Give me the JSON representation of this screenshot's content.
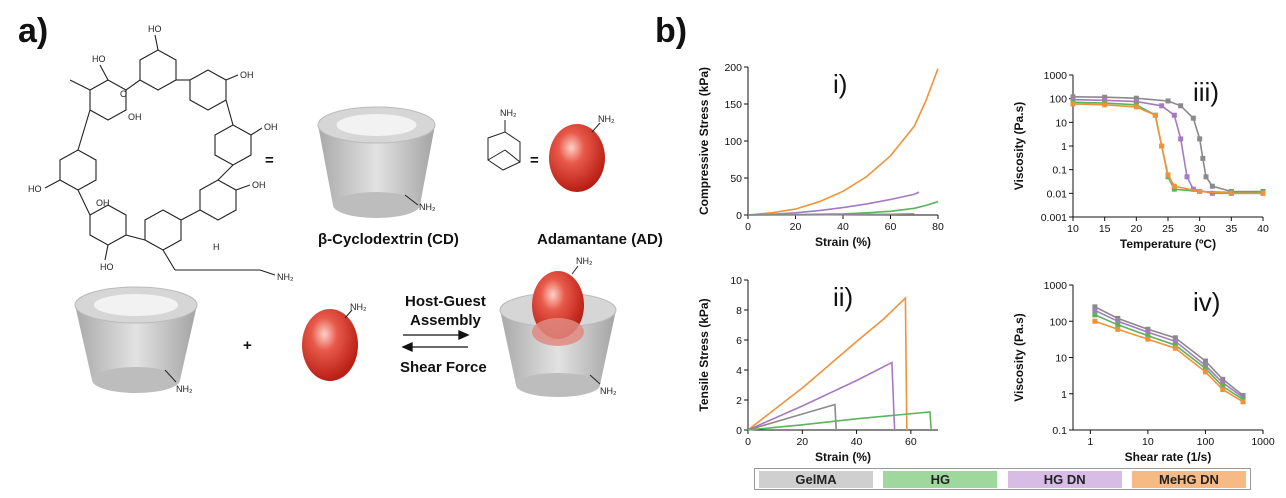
{
  "panels": {
    "a_label": "a)",
    "b_label": "b)"
  },
  "scheme": {
    "equals_1": "=",
    "equals_2": "=",
    "plus": "+",
    "cd_label": "β-Cyclodextrin (CD)",
    "ad_label": "Adamantane (AD)",
    "nh2": "NH₂",
    "ho": "HO",
    "oh": "OH",
    "o": "O",
    "h": "H",
    "arrow_top_1": "Host-Guest",
    "arrow_top_2": "Assembly",
    "arrow_bottom": "Shear Force"
  },
  "colors": {
    "GelMA": "#8a8a8a",
    "HG": "#5bb35b",
    "HG DN": "#a779c2",
    "MeHG DN": "#f0923a"
  },
  "legend": [
    {
      "name": "GelMA",
      "bg": "#cfcfcf"
    },
    {
      "name": "HG",
      "bg": "#9fd89d"
    },
    {
      "name": "HG DN",
      "bg": "#d7bde6"
    },
    {
      "name": "MeHG DN",
      "bg": "#f7ba84"
    }
  ],
  "chart_data": [
    {
      "id": "i",
      "numeral": "i)",
      "type": "line",
      "xlabel": "Strain (%)",
      "ylabel": "Compressive Stress (kPa)",
      "xlim": [
        0,
        80
      ],
      "ylim": [
        0,
        200
      ],
      "xticks": [
        0,
        20,
        40,
        60,
        80
      ],
      "yticks": [
        0,
        50,
        100,
        150,
        200
      ],
      "series": [
        {
          "name": "MeHG DN",
          "x": [
            0,
            10,
            20,
            30,
            40,
            50,
            60,
            70,
            75,
            80
          ],
          "y": [
            0,
            3,
            8,
            18,
            32,
            52,
            80,
            120,
            155,
            198
          ]
        },
        {
          "name": "HG DN",
          "x": [
            0,
            10,
            20,
            30,
            40,
            50,
            60,
            70,
            72
          ],
          "y": [
            0,
            1,
            3,
            6,
            10,
            15,
            21,
            28,
            31
          ]
        },
        {
          "name": "HG",
          "x": [
            0,
            20,
            40,
            50,
            60,
            70,
            75,
            80
          ],
          "y": [
            0,
            0.5,
            1.5,
            3,
            5,
            9,
            13,
            18
          ]
        },
        {
          "name": "GelMA",
          "x": [
            0,
            20,
            40,
            60,
            70
          ],
          "y": [
            0,
            0.2,
            0.5,
            1,
            1.5
          ]
        }
      ]
    },
    {
      "id": "ii",
      "numeral": "ii)",
      "type": "line",
      "xlabel": "Strain (%)",
      "ylabel": "Tensile Stress (kPa)",
      "xlim": [
        0,
        70
      ],
      "ylim": [
        0,
        10
      ],
      "xticks": [
        0,
        20,
        40,
        60
      ],
      "yticks": [
        0,
        2,
        4,
        6,
        8,
        10
      ],
      "series": [
        {
          "name": "MeHG DN",
          "x": [
            0,
            20,
            40,
            50,
            58,
            58.5
          ],
          "y": [
            0,
            2.8,
            5.9,
            7.4,
            8.8,
            0
          ]
        },
        {
          "name": "HG DN",
          "x": [
            0,
            20,
            40,
            53,
            54
          ],
          "y": [
            0,
            1.6,
            3.3,
            4.5,
            0
          ]
        },
        {
          "name": "GelMA",
          "x": [
            0,
            15,
            32,
            32.5
          ],
          "y": [
            0,
            0.8,
            1.7,
            0
          ]
        },
        {
          "name": "HG",
          "x": [
            0,
            20,
            40,
            55,
            67,
            67.5
          ],
          "y": [
            0,
            0.35,
            0.75,
            1.0,
            1.2,
            0
          ]
        }
      ]
    },
    {
      "id": "iii",
      "numeral": "iii)",
      "type": "scatter",
      "xlabel": "Temperature (ºC)",
      "ylabel": "Viscosity (Pa.s)",
      "xlim": [
        10,
        40
      ],
      "ylim": [
        0.001,
        1000
      ],
      "yscale": "log",
      "xticks": [
        10,
        15,
        20,
        25,
        30,
        35,
        40
      ],
      "yticks": [
        0.001,
        0.01,
        0.1,
        1,
        10,
        100,
        1000
      ],
      "ytick_labels": [
        "0.001",
        "0.01",
        "0.1",
        "1",
        "10",
        "100",
        "1000"
      ],
      "series": [
        {
          "name": "GelMA",
          "x": [
            10,
            15,
            20,
            25,
            27,
            29,
            30,
            30.5,
            31,
            32,
            35,
            40
          ],
          "y": [
            120,
            115,
            105,
            80,
            50,
            15,
            2,
            0.3,
            0.05,
            0.02,
            0.012,
            0.012
          ]
        },
        {
          "name": "HG DN",
          "x": [
            10,
            15,
            20,
            24,
            26,
            27,
            28,
            29,
            32,
            35,
            40
          ],
          "y": [
            90,
            85,
            75,
            50,
            20,
            2,
            0.05,
            0.015,
            0.01,
            0.01,
            0.01
          ]
        },
        {
          "name": "HG",
          "x": [
            10,
            15,
            20,
            23,
            24,
            25,
            26,
            30,
            35,
            40
          ],
          "y": [
            70,
            65,
            55,
            20,
            1,
            0.05,
            0.015,
            0.012,
            0.011,
            0.011
          ]
        },
        {
          "name": "MeHG DN",
          "x": [
            10,
            15,
            20,
            23,
            24,
            25,
            26,
            30,
            35,
            40
          ],
          "y": [
            60,
            55,
            45,
            20,
            1,
            0.06,
            0.02,
            0.012,
            0.01,
            0.01
          ]
        }
      ]
    },
    {
      "id": "iv",
      "numeral": "iv)",
      "type": "scatter",
      "xlabel": "Shear rate (1/s)",
      "ylabel": "Viscosity (Pa.s)",
      "xlim": [
        0.5,
        1000
      ],
      "ylim": [
        0.1,
        1000
      ],
      "xscale": "log",
      "yscale": "log",
      "xticks": [
        1,
        10,
        100,
        1000
      ],
      "xtick_labels": [
        "1",
        "10",
        "100",
        "1000"
      ],
      "yticks": [
        0.1,
        1,
        10,
        100,
        1000
      ],
      "ytick_labels": [
        "0.1",
        "1",
        "10",
        "100",
        "1000"
      ],
      "series": [
        {
          "name": "GelMA",
          "x": [
            1.2,
            3,
            10,
            30,
            100,
            200,
            450
          ],
          "y": [
            250,
            120,
            60,
            35,
            8,
            2.5,
            0.9
          ]
        },
        {
          "name": "HG DN",
          "x": [
            1.2,
            3,
            10,
            30,
            100,
            200,
            450
          ],
          "y": [
            200,
            100,
            50,
            28,
            6,
            2,
            0.8
          ]
        },
        {
          "name": "HG",
          "x": [
            1.2,
            3,
            10,
            30,
            100,
            200,
            450
          ],
          "y": [
            150,
            80,
            40,
            22,
            5,
            1.6,
            0.7
          ]
        },
        {
          "name": "MeHG DN",
          "x": [
            1.2,
            3,
            10,
            30,
            100,
            200,
            450
          ],
          "y": [
            100,
            60,
            32,
            18,
            4,
            1.3,
            0.6
          ]
        }
      ]
    }
  ]
}
